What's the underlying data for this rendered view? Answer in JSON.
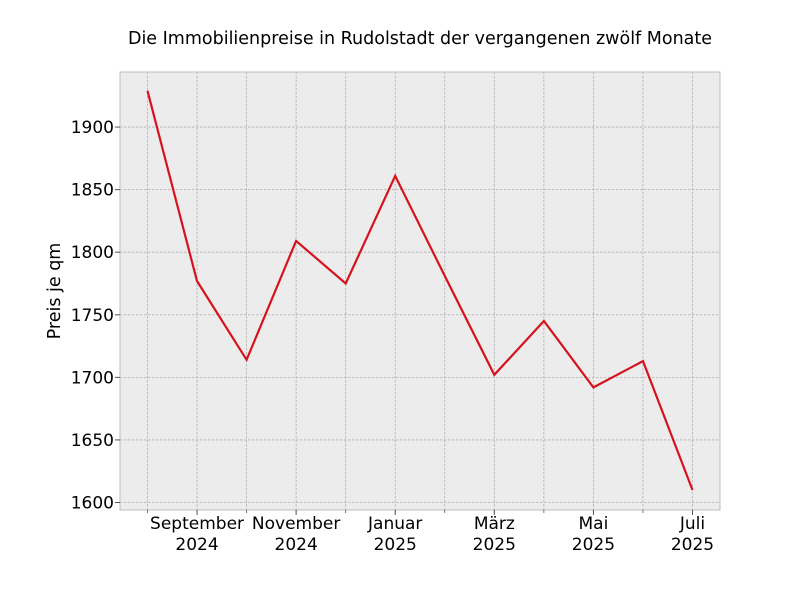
{
  "chart_data": {
    "type": "line",
    "title": "Die Immobilienpreise in Rudolstadt der vergangenen zwölf Monate",
    "xlabel": "",
    "ylabel": "Preis je qm",
    "x": [
      "2024-08",
      "2024-09",
      "2024-10",
      "2024-11",
      "2024-12",
      "2025-01",
      "2025-02",
      "2025-03",
      "2025-04",
      "2025-05",
      "2025-06",
      "2025-07"
    ],
    "x_tick_labels": [
      {
        "x": "2024-09",
        "line1": "September",
        "line2": "2024"
      },
      {
        "x": "2024-11",
        "line1": "November",
        "line2": "2024"
      },
      {
        "x": "2025-01",
        "line1": "Januar",
        "line2": "2025"
      },
      {
        "x": "2025-03",
        "line1": "März",
        "line2": "2025"
      },
      {
        "x": "2025-05",
        "line1": "Mai",
        "line2": "2025"
      },
      {
        "x": "2025-07",
        "line1": "Juli",
        "line2": "2025"
      }
    ],
    "series": [
      {
        "values": [
          1929,
          1777,
          1714,
          1809,
          1775,
          1861,
          1781,
          1702,
          1745,
          1692,
          1713,
          1610
        ],
        "color": "#d7121f"
      }
    ],
    "ylim": [
      1594,
      1944
    ],
    "yticks": [
      1600,
      1650,
      1700,
      1750,
      1800,
      1850,
      1900
    ],
    "grid": true,
    "legend": "none",
    "style": {
      "plot_background": "#ececec",
      "grid_color": "#b0b0b0",
      "frame_color": "#bcbcbc"
    }
  }
}
